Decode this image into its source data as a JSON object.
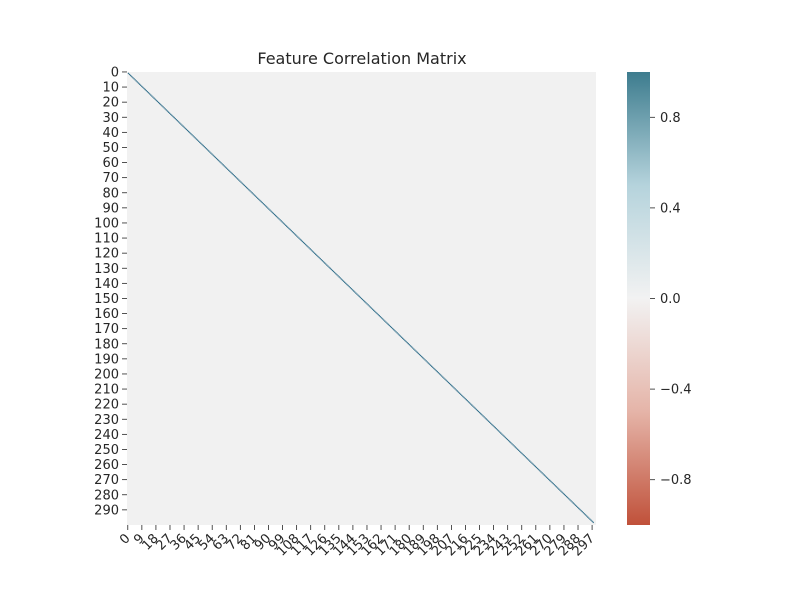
{
  "chart_data": {
    "type": "heatmap",
    "title": "Feature Correlation Matrix",
    "xlabel": "",
    "ylabel": "",
    "matrix_size": 300,
    "matrix_description": {
      "diagonal_value": 1.0,
      "off_diagonal_value": 0.0
    },
    "x_ticks": [
      0,
      9,
      18,
      27,
      36,
      45,
      54,
      63,
      72,
      81,
      90,
      99,
      108,
      117,
      126,
      135,
      144,
      153,
      162,
      171,
      180,
      189,
      198,
      207,
      216,
      225,
      234,
      243,
      252,
      261,
      270,
      279,
      288,
      297
    ],
    "y_ticks": [
      0,
      10,
      20,
      30,
      40,
      50,
      60,
      70,
      80,
      90,
      100,
      110,
      120,
      130,
      140,
      150,
      160,
      170,
      180,
      190,
      200,
      210,
      220,
      230,
      240,
      250,
      260,
      270,
      280,
      290
    ],
    "colorbar": {
      "vmin": -1.0,
      "vmax": 1.0,
      "ticks": [
        0.8,
        0.4,
        0.0,
        -0.4,
        -0.8
      ],
      "tick_labels": [
        "0.8",
        "0.4",
        "0.0",
        "−0.4",
        "−0.8"
      ],
      "colors": [
        "#c0513a",
        "#e5b4a8",
        "#f2f2f2",
        "#b5d3dc",
        "#3d7c8e"
      ]
    },
    "colors": {
      "diagonal": "#2f6d89",
      "background": "#f1f1f1"
    },
    "grid": false,
    "legend": "colorbar-right"
  }
}
